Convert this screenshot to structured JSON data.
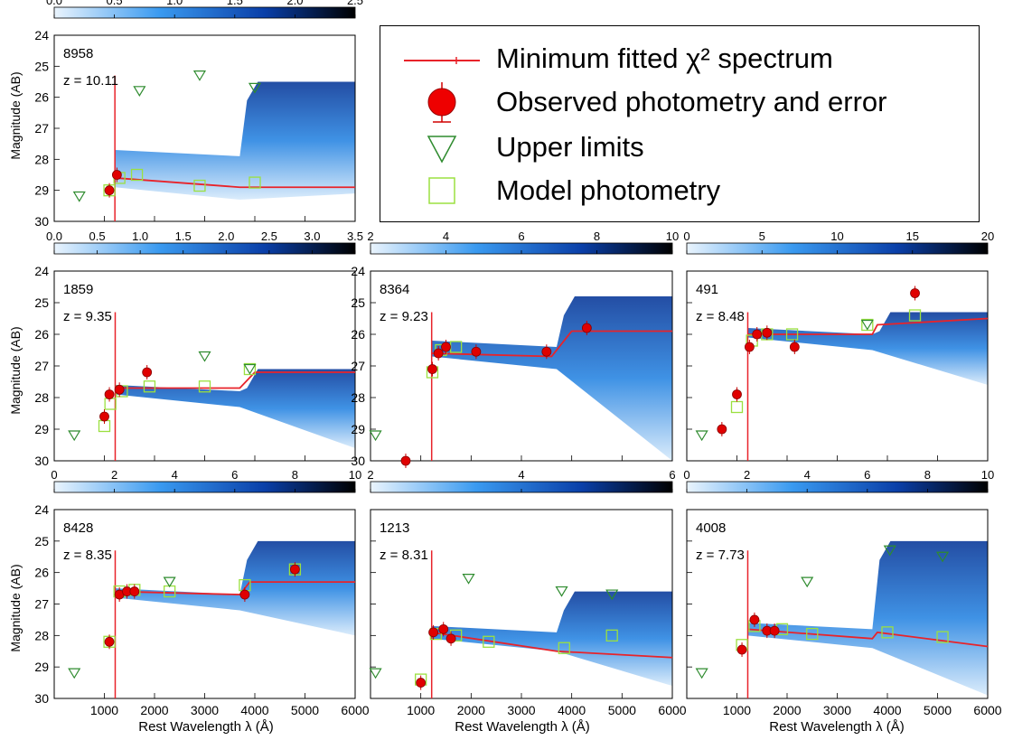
{
  "legend": {
    "entries": [
      {
        "label": "Minimum fitted χ² spectrum",
        "symbol": "red-line"
      },
      {
        "label": "Observed photometry and error",
        "symbol": "red-circle-errorbar"
      },
      {
        "label": "Upper limits",
        "symbol": "green-triangle-down"
      },
      {
        "label": "Model photometry",
        "symbol": "green-square"
      }
    ]
  },
  "colors": {
    "spectrum": "#e8232a",
    "observed": "#e00000",
    "upper_limit": "#2e8b2e",
    "model_phot": "#9be040",
    "cmap_low": "#eaf4fd",
    "cmap_mid": "#1e7be0",
    "cmap_high": "#000000"
  },
  "axes": {
    "ylabel": "Magnitude (AB)",
    "xlabel": "Rest Wavelength λ (Å)"
  },
  "chart_data": [
    {
      "type": "line",
      "id": "8958",
      "label": "8958",
      "zlabel": "z = 10.11",
      "ylim": [
        30,
        24
      ],
      "xlim": [
        0,
        6000
      ],
      "cbar_ticks": [
        "0.0",
        "0.5",
        "1.0",
        "1.5",
        "2.0",
        "2.5"
      ],
      "yticks": [
        "24",
        "25",
        "26",
        "27",
        "28",
        "29",
        "30"
      ],
      "xticks": [],
      "break": 1210,
      "balmer": 3700,
      "fan": {
        "uv_top": 27.7,
        "opt_top": 25.5,
        "uv_bot": 28.9,
        "opt_bot": 29.1
      },
      "spectrum": [
        [
          1216,
          28.6
        ],
        [
          3700,
          28.9
        ],
        [
          6000,
          28.9
        ]
      ],
      "observed": [
        [
          1100,
          29.0
        ],
        [
          1250,
          28.5
        ]
      ],
      "upper": [
        [
          500,
          29.2
        ],
        [
          1700,
          25.8
        ],
        [
          2900,
          25.3
        ],
        [
          4000,
          25.7
        ]
      ],
      "model": [
        [
          1100,
          29.0
        ],
        [
          1300,
          28.6
        ],
        [
          1650,
          28.5
        ],
        [
          2900,
          28.85
        ],
        [
          4000,
          28.75
        ]
      ]
    },
    {
      "type": "line",
      "id": "1859",
      "label": "1859",
      "zlabel": "z = 9.35",
      "ylim": [
        30,
        24
      ],
      "xlim": [
        0,
        6000
      ],
      "cbar_ticks": [
        "0.0",
        "0.5",
        "1.0",
        "1.5",
        "2.0",
        "2.5",
        "3.0",
        "3.5"
      ],
      "yticks": [
        "24",
        "25",
        "26",
        "27",
        "28",
        "29",
        "30"
      ],
      "xticks": [],
      "break": 1216,
      "balmer": 3700,
      "fan": {
        "uv_top": 27.6,
        "opt_top": 27.1,
        "uv_bot": 27.9,
        "opt_bot": 29.6
      },
      "spectrum": [
        [
          1216,
          27.7
        ],
        [
          3700,
          27.7
        ],
        [
          4000,
          27.2
        ],
        [
          6000,
          27.2
        ]
      ],
      "observed": [
        [
          1000,
          28.6
        ],
        [
          1100,
          27.9
        ],
        [
          1300,
          27.75
        ],
        [
          1850,
          27.2
        ]
      ],
      "upper": [
        [
          400,
          29.2
        ],
        [
          3000,
          26.7
        ],
        [
          3900,
          27.1
        ]
      ],
      "model": [
        [
          1000,
          28.9
        ],
        [
          1120,
          28.2
        ],
        [
          1350,
          27.8
        ],
        [
          1900,
          27.65
        ],
        [
          3000,
          27.65
        ],
        [
          3900,
          27.1
        ]
      ]
    },
    {
      "type": "line",
      "id": "8364",
      "label": "8364",
      "zlabel": "z = 9.23",
      "ylim": [
        30,
        24
      ],
      "xlim": [
        0,
        6000
      ],
      "cbar_ticks": [
        "2",
        "4",
        "6",
        "8",
        "10"
      ],
      "yticks": [
        "24",
        "25",
        "26",
        "27",
        "28",
        "29",
        "30"
      ],
      "xticks": [],
      "break": 1216,
      "balmer": 3700,
      "fan": {
        "uv_top": 26.2,
        "opt_top": 24.8,
        "uv_bot": 26.7,
        "opt_bot": 30.0
      },
      "spectrum": [
        [
          1216,
          26.6
        ],
        [
          3600,
          26.7
        ],
        [
          4000,
          25.9
        ],
        [
          6000,
          25.9
        ]
      ],
      "observed": [
        [
          700,
          30.0
        ],
        [
          1230,
          27.1
        ],
        [
          1350,
          26.6
        ],
        [
          1500,
          26.4
        ],
        [
          2100,
          26.55
        ],
        [
          3500,
          26.55
        ],
        [
          4300,
          25.8
        ]
      ],
      "upper": [
        [
          100,
          29.2
        ]
      ],
      "model": [
        [
          1230,
          27.2
        ],
        [
          1400,
          26.5
        ],
        [
          1700,
          26.4
        ]
      ]
    },
    {
      "type": "line",
      "id": "491",
      "label": "491",
      "zlabel": "z = 8.48",
      "ylim": [
        30,
        24
      ],
      "xlim": [
        0,
        6000
      ],
      "cbar_ticks": [
        "0",
        "5",
        "10",
        "15",
        "20"
      ],
      "yticks": [],
      "xticks": [],
      "break": 1216,
      "balmer": 3700,
      "fan": {
        "uv_top": 25.8,
        "opt_top": 25.3,
        "uv_bot": 26.1,
        "opt_bot": 27.6
      },
      "spectrum": [
        [
          1216,
          26.0
        ],
        [
          3700,
          26.0
        ],
        [
          3800,
          25.7
        ],
        [
          6000,
          25.5
        ]
      ],
      "observed": [
        [
          700,
          29.0
        ],
        [
          1000,
          27.9
        ],
        [
          1250,
          26.4
        ],
        [
          1400,
          26.0
        ],
        [
          1600,
          25.95
        ],
        [
          2150,
          26.4
        ],
        [
          4550,
          24.7
        ]
      ],
      "upper": [
        [
          300,
          29.2
        ],
        [
          3600,
          25.7
        ]
      ],
      "model": [
        [
          1000,
          28.3
        ],
        [
          1300,
          26.2
        ],
        [
          1600,
          26.0
        ],
        [
          2100,
          26.0
        ],
        [
          3600,
          25.7
        ],
        [
          4550,
          25.4
        ]
      ]
    },
    {
      "type": "line",
      "id": "8428",
      "label": "8428",
      "zlabel": "z = 8.35",
      "ylim": [
        30,
        24
      ],
      "xlim": [
        0,
        6000
      ],
      "cbar_ticks": [
        "0",
        "2",
        "4",
        "6",
        "8",
        "10"
      ],
      "yticks": [
        "24",
        "25",
        "26",
        "27",
        "28",
        "29",
        "30"
      ],
      "xticks": [
        "1000",
        "2000",
        "3000",
        "4000",
        "5000",
        "6000"
      ],
      "break": 1216,
      "balmer": 3700,
      "fan": {
        "uv_top": 26.5,
        "opt_top": 25.0,
        "uv_bot": 26.8,
        "opt_bot": 28.0
      },
      "spectrum": [
        [
          1216,
          26.6
        ],
        [
          3700,
          26.7
        ],
        [
          3900,
          26.3
        ],
        [
          6000,
          26.3
        ]
      ],
      "observed": [
        [
          1100,
          28.2
        ],
        [
          1300,
          26.7
        ],
        [
          1450,
          26.6
        ],
        [
          1600,
          26.6
        ],
        [
          3800,
          26.7
        ],
        [
          4800,
          25.9
        ]
      ],
      "upper": [
        [
          400,
          29.2
        ],
        [
          2300,
          26.3
        ]
      ],
      "model": [
        [
          1100,
          28.2
        ],
        [
          1300,
          26.6
        ],
        [
          1600,
          26.55
        ],
        [
          2300,
          26.6
        ],
        [
          3800,
          26.4
        ],
        [
          4800,
          25.9
        ]
      ]
    },
    {
      "type": "line",
      "id": "1213",
      "label": "1213",
      "zlabel": "z = 8.31",
      "ylim": [
        30,
        24
      ],
      "xlim": [
        0,
        6000
      ],
      "cbar_ticks": [
        "2",
        "4",
        "6"
      ],
      "yticks": [],
      "xticks": [
        "1000",
        "2000",
        "3000",
        "4000",
        "5000",
        "6000"
      ],
      "break": 1216,
      "balmer": 3700,
      "fan": {
        "uv_top": 27.7,
        "opt_top": 26.6,
        "uv_bot": 28.1,
        "opt_bot": 29.6
      },
      "spectrum": [
        [
          1216,
          27.9
        ],
        [
          3700,
          28.5
        ],
        [
          6000,
          28.7
        ]
      ],
      "observed": [
        [
          1000,
          29.5
        ],
        [
          1250,
          27.9
        ],
        [
          1450,
          27.8
        ],
        [
          1600,
          28.1
        ]
      ],
      "upper": [
        [
          100,
          29.2
        ],
        [
          1950,
          26.2
        ],
        [
          3800,
          26.6
        ],
        [
          4800,
          26.7
        ]
      ],
      "model": [
        [
          1000,
          29.4
        ],
        [
          1300,
          27.95
        ],
        [
          1700,
          28.0
        ],
        [
          2350,
          28.2
        ],
        [
          3850,
          28.4
        ],
        [
          4800,
          28.0
        ]
      ]
    },
    {
      "type": "line",
      "id": "4008",
      "label": "4008",
      "zlabel": "z = 7.73",
      "ylim": [
        30,
        24
      ],
      "xlim": [
        0,
        6000
      ],
      "cbar_ticks": [
        "0",
        "2",
        "4",
        "6",
        "8",
        "10"
      ],
      "yticks": [],
      "xticks": [
        "1000",
        "2000",
        "3000",
        "4000",
        "5000",
        "6000"
      ],
      "break": 1216,
      "balmer": 3700,
      "fan": {
        "uv_top": 27.6,
        "opt_top": 25.0,
        "uv_bot": 28.0,
        "opt_bot": 29.9
      },
      "spectrum": [
        [
          1216,
          27.8
        ],
        [
          3700,
          28.1
        ],
        [
          3800,
          27.9
        ],
        [
          6000,
          28.35
        ]
      ],
      "observed": [
        [
          1100,
          28.45
        ],
        [
          1350,
          27.5
        ],
        [
          1600,
          27.85
        ],
        [
          1750,
          27.85
        ]
      ],
      "upper": [
        [
          300,
          29.2
        ],
        [
          2400,
          26.3
        ],
        [
          4050,
          25.3
        ],
        [
          5100,
          25.5
        ]
      ],
      "model": [
        [
          1100,
          28.3
        ],
        [
          1350,
          27.7
        ],
        [
          1900,
          27.8
        ],
        [
          2500,
          27.95
        ],
        [
          4000,
          27.9
        ],
        [
          5100,
          28.05
        ]
      ]
    }
  ]
}
